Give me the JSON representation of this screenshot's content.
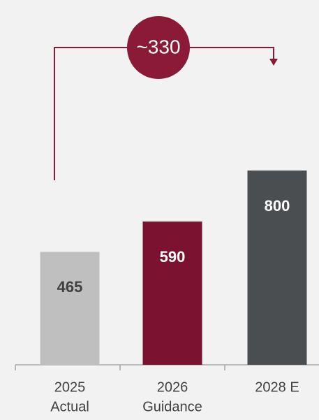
{
  "chart_data": {
    "type": "bar",
    "categories": [
      [
        "2025",
        "Actual"
      ],
      [
        "2026",
        "Guidance"
      ],
      [
        "2028 E"
      ]
    ],
    "values": [
      465,
      590,
      800
    ],
    "colors": [
      "#bfbfbf",
      "#7b1230",
      "#4b4e51"
    ],
    "label_colors": [
      "#404040",
      "#ffffff",
      "#ffffff"
    ],
    "annotation": "~330",
    "annotation_color": "#8b1a37"
  }
}
